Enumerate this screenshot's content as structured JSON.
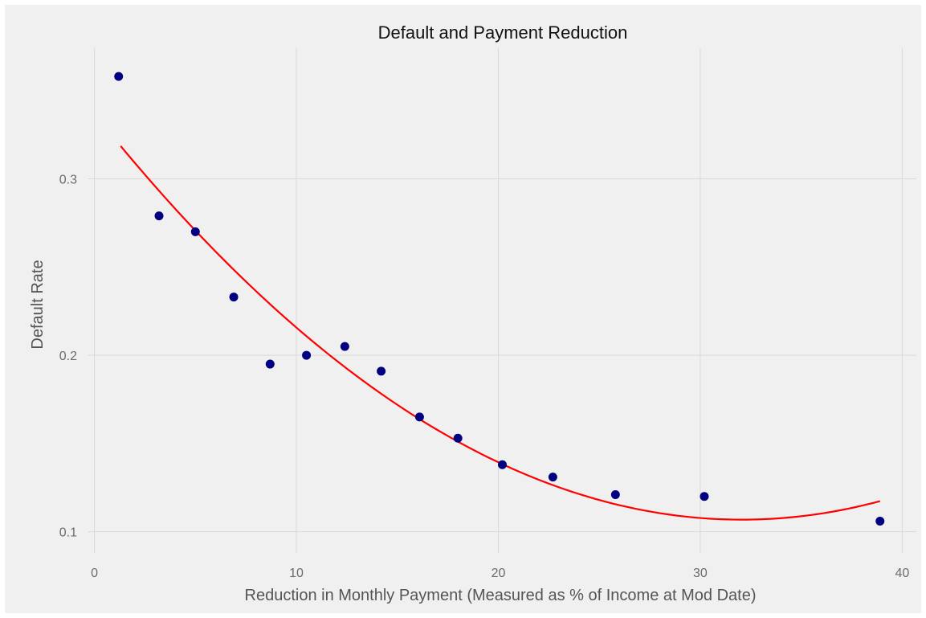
{
  "chart_data": {
    "type": "scatter",
    "title": "Default and Payment Reduction",
    "xlabel": "Reduction in Monthly Payment (Measured as % of Income at Mod Date)",
    "ylabel": "Default Rate",
    "xlim": [
      -0.3,
      40.7
    ],
    "ylim": [
      0.088,
      0.374
    ],
    "x_ticks": [
      0,
      10,
      20,
      30,
      40
    ],
    "x_tick_labels": [
      "0",
      "10",
      "20",
      "30",
      "40"
    ],
    "y_ticks": [
      0.1,
      0.2,
      0.3
    ],
    "y_tick_labels": [
      "0.1",
      "0.2",
      "0.3"
    ],
    "grid": true,
    "series": [
      {
        "type": "scatter",
        "color": "#000080",
        "x": [
          1.2,
          3.2,
          5.0,
          6.9,
          8.7,
          10.5,
          12.4,
          14.2,
          16.1,
          18.0,
          20.2,
          22.7,
          25.8,
          30.2,
          38.9
        ],
        "y": [
          0.358,
          0.279,
          0.27,
          0.233,
          0.195,
          0.2,
          0.205,
          0.191,
          0.165,
          0.153,
          0.138,
          0.131,
          0.121,
          0.12,
          0.106
        ]
      },
      {
        "type": "line",
        "color": "#ff0000",
        "fit": "quadratic",
        "x": [
          1.3,
          5,
          10,
          15,
          20,
          25,
          30,
          32,
          35,
          38.9
        ],
        "y": [
          0.319,
          0.27,
          0.216,
          0.172,
          0.139,
          0.118,
          0.108,
          0.107,
          0.109,
          0.117
        ]
      }
    ]
  },
  "colors": {
    "panel_background": "#f0f0f0",
    "grid": "#d9d9d9",
    "points": "#000080",
    "fit_line": "#ff0000"
  }
}
